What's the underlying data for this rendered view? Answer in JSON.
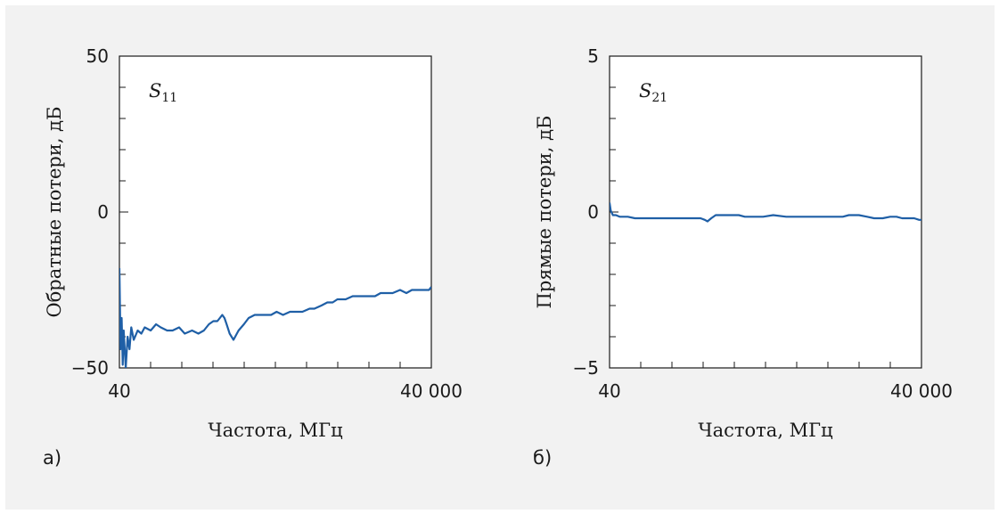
{
  "chart_data": [
    {
      "type": "line",
      "panel_label": "а)",
      "annotation": {
        "symbol": "S",
        "subscript": "11"
      },
      "xlabel": "Частота, МГц",
      "ylabel": "Обратные потери, дБ",
      "xscale": "log",
      "xlim": [
        40,
        40000
      ],
      "ylim": [
        -50,
        50
      ],
      "x_ticks": [
        40,
        40000
      ],
      "x_tick_labels": [
        "40",
        "40 000"
      ],
      "y_ticks": [
        -50,
        0,
        50
      ],
      "y_tick_labels": [
        "−50",
        "0",
        "50"
      ],
      "color": "#1f5fa6",
      "series": [
        {
          "x": [
            40,
            41,
            42,
            43,
            44,
            46,
            48,
            50,
            52,
            55,
            60,
            65,
            70,
            80,
            90,
            100,
            115,
            130,
            150,
            170,
            200,
            230,
            260,
            290,
            320,
            350,
            370,
            390,
            410,
            430,
            460,
            500,
            560,
            630,
            700,
            800,
            900,
            1000,
            1150,
            1300,
            1500,
            1750,
            2000,
            2300,
            2700,
            3000,
            3500,
            4000,
            4500,
            5000,
            6000,
            7000,
            8000,
            9000,
            10000,
            11500,
            13000,
            15000,
            17000,
            20000,
            23000,
            26000,
            29000,
            32000,
            35000,
            38000,
            40000
          ],
          "y": [
            -18,
            -44,
            -34,
            -49,
            -38,
            -50,
            -40,
            -44,
            -37,
            -41,
            -38,
            -39,
            -37,
            -38,
            -36,
            -37,
            -38,
            -38,
            -37,
            -39,
            -38,
            -39,
            -38,
            -36,
            -35,
            -35,
            -34,
            -33,
            -34,
            -36,
            -39,
            -41,
            -38,
            -36,
            -34,
            -33,
            -33,
            -33,
            -33,
            -32,
            -33,
            -32,
            -32,
            -32,
            -31,
            -31,
            -30,
            -29,
            -29,
            -28,
            -28,
            -27,
            -27,
            -27,
            -27,
            -27,
            -26,
            -26,
            -26,
            -25,
            -26,
            -25,
            -25,
            -25,
            -25,
            -25,
            -24
          ]
        }
      ]
    },
    {
      "type": "line",
      "panel_label": "б)",
      "annotation": {
        "symbol": "S",
        "subscript": "21"
      },
      "xlabel": "Частота, МГц",
      "ylabel": "Прямые потери, дБ",
      "xscale": "log",
      "xlim": [
        40,
        40000
      ],
      "ylim": [
        -5,
        5
      ],
      "x_ticks": [
        40,
        40000
      ],
      "x_tick_labels": [
        "40",
        "40 000"
      ],
      "y_ticks": [
        -5,
        0,
        5
      ],
      "y_tick_labels": [
        "−5",
        "0",
        "5"
      ],
      "color": "#1f5fa6",
      "series": [
        {
          "x": [
            40,
            41,
            43,
            46,
            50,
            55,
            60,
            70,
            80,
            90,
            100,
            120,
            150,
            200,
            250,
            300,
            330,
            350,
            380,
            420,
            460,
            500,
            600,
            700,
            800,
            1000,
            1200,
            1500,
            2000,
            2500,
            3000,
            4000,
            5000,
            6000,
            7000,
            8000,
            10000,
            12000,
            14000,
            17000,
            20000,
            23000,
            26000,
            30000,
            34000,
            38000,
            40000
          ],
          "y": [
            0.3,
            0.05,
            -0.1,
            -0.1,
            -0.15,
            -0.15,
            -0.15,
            -0.2,
            -0.2,
            -0.2,
            -0.2,
            -0.2,
            -0.2,
            -0.2,
            -0.2,
            -0.2,
            -0.25,
            -0.3,
            -0.2,
            -0.1,
            -0.1,
            -0.1,
            -0.1,
            -0.1,
            -0.15,
            -0.15,
            -0.15,
            -0.1,
            -0.15,
            -0.15,
            -0.15,
            -0.15,
            -0.15,
            -0.15,
            -0.15,
            -0.1,
            -0.1,
            -0.15,
            -0.2,
            -0.2,
            -0.15,
            -0.15,
            -0.2,
            -0.2,
            -0.2,
            -0.25,
            -0.25
          ]
        }
      ]
    }
  ]
}
